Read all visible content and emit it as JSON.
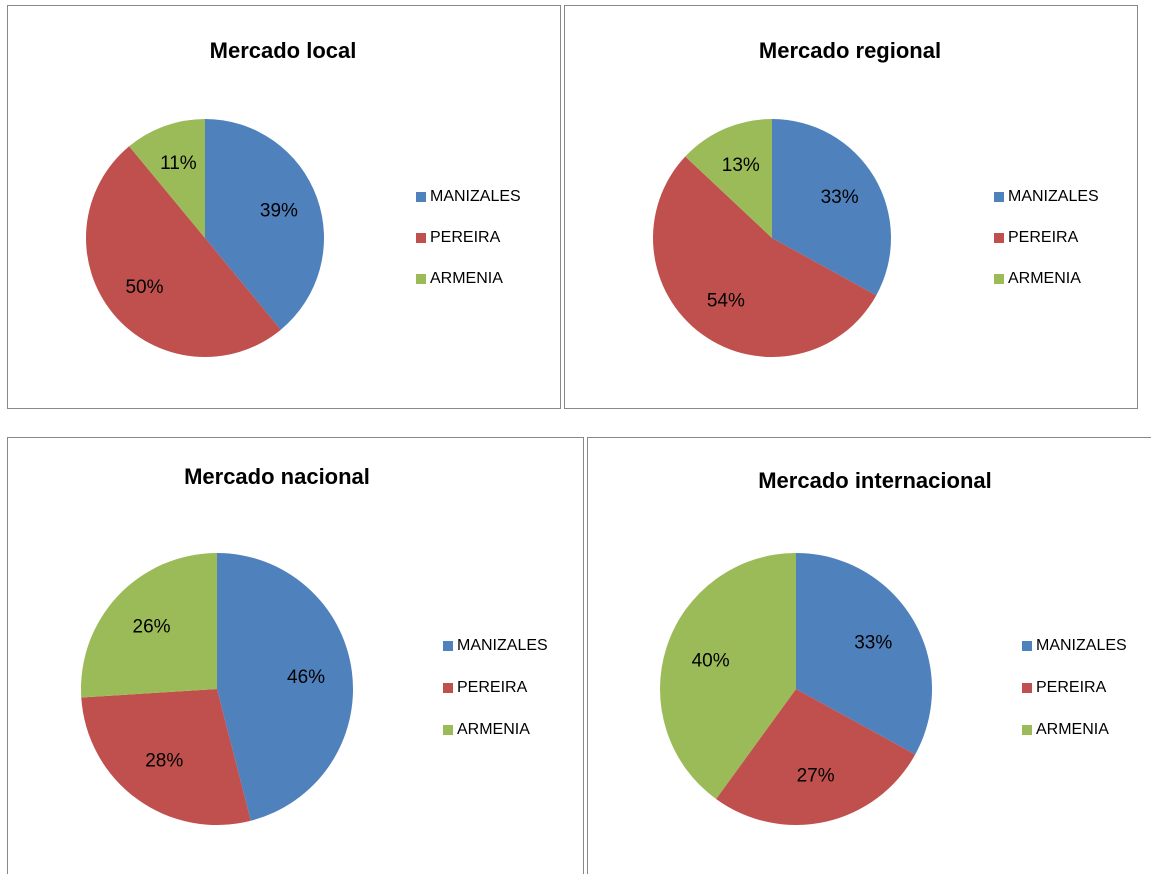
{
  "chart_data": [
    {
      "type": "pie",
      "title": "Mercado local",
      "categories": [
        "MANIZALES",
        "PEREIRA",
        "ARMENIA"
      ],
      "values": [
        39,
        50,
        11
      ],
      "value_labels": [
        "39%",
        "50%",
        "11%"
      ],
      "colors": [
        "#4f81bd",
        "#c0504d",
        "#9bbb59"
      ],
      "legend": "right"
    },
    {
      "type": "pie",
      "title": "Mercado regional",
      "categories": [
        "MANIZALES",
        "PEREIRA",
        "ARMENIA"
      ],
      "values": [
        33,
        54,
        13
      ],
      "value_labels": [
        "33%",
        "54%",
        "13%"
      ],
      "colors": [
        "#4f81bd",
        "#c0504d",
        "#9bbb59"
      ],
      "legend": "right"
    },
    {
      "type": "pie",
      "title": "Mercado nacional",
      "categories": [
        "MANIZALES",
        "PEREIRA",
        "ARMENIA"
      ],
      "values": [
        46,
        28,
        26
      ],
      "value_labels": [
        "46%",
        "28%",
        "26%"
      ],
      "colors": [
        "#4f81bd",
        "#c0504d",
        "#9bbb59"
      ],
      "legend": "right"
    },
    {
      "type": "pie",
      "title": "Mercado internacional",
      "categories": [
        "MANIZALES",
        "PEREIRA",
        "ARMENIA"
      ],
      "values": [
        33,
        27,
        40
      ],
      "value_labels": [
        "33%",
        "27%",
        "40%"
      ],
      "colors": [
        "#4f81bd",
        "#c0504d",
        "#9bbb59"
      ],
      "legend": "right"
    }
  ]
}
